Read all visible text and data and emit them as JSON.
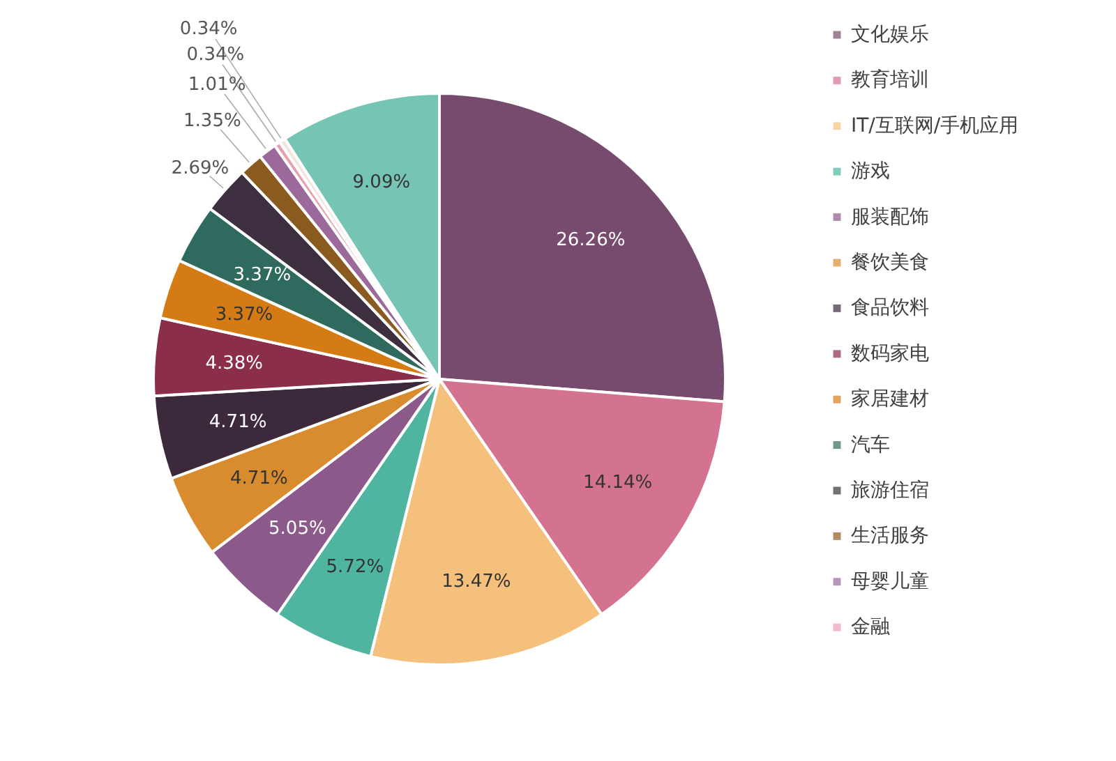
{
  "chart_data": {
    "type": "pie",
    "categories": [
      "文化娱乐",
      "教育培训",
      "IT/互联网/手机应用",
      "游戏",
      "服装配饰",
      "餐饮美食",
      "食品饮料",
      "数码家电",
      "家居建材",
      "汽车",
      "旅游住宿",
      "生活服务",
      "母婴儿童",
      "金融",
      null,
      null
    ],
    "values": [
      26.26,
      14.14,
      13.47,
      5.72,
      5.05,
      4.71,
      4.71,
      4.38,
      3.37,
      3.37,
      2.69,
      1.35,
      1.01,
      0.34,
      0.34,
      9.09
    ],
    "value_labels": [
      "26.26%",
      "14.14%",
      "13.47%",
      "5.72%",
      "5.05%",
      "4.71%",
      "4.71%",
      "4.38%",
      "3.37%",
      "3.37%",
      "2.69%",
      "1.35%",
      "1.01%",
      "0.34%",
      "0.34%",
      "9.09%"
    ],
    "colors": [
      "#774b6e",
      "#d4738f",
      "#f5c07c",
      "#4fb5a0",
      "#8b5a8a",
      "#d98c2e",
      "#3c2a3c",
      "#8b2e4a",
      "#d47b14",
      "#2e6a5e",
      "#3d2f3f",
      "#8b5a1e",
      "#9b6a9b",
      "#e8a0b0",
      "#f2e6dc",
      "#76c4b4"
    ],
    "legend": "right"
  }
}
